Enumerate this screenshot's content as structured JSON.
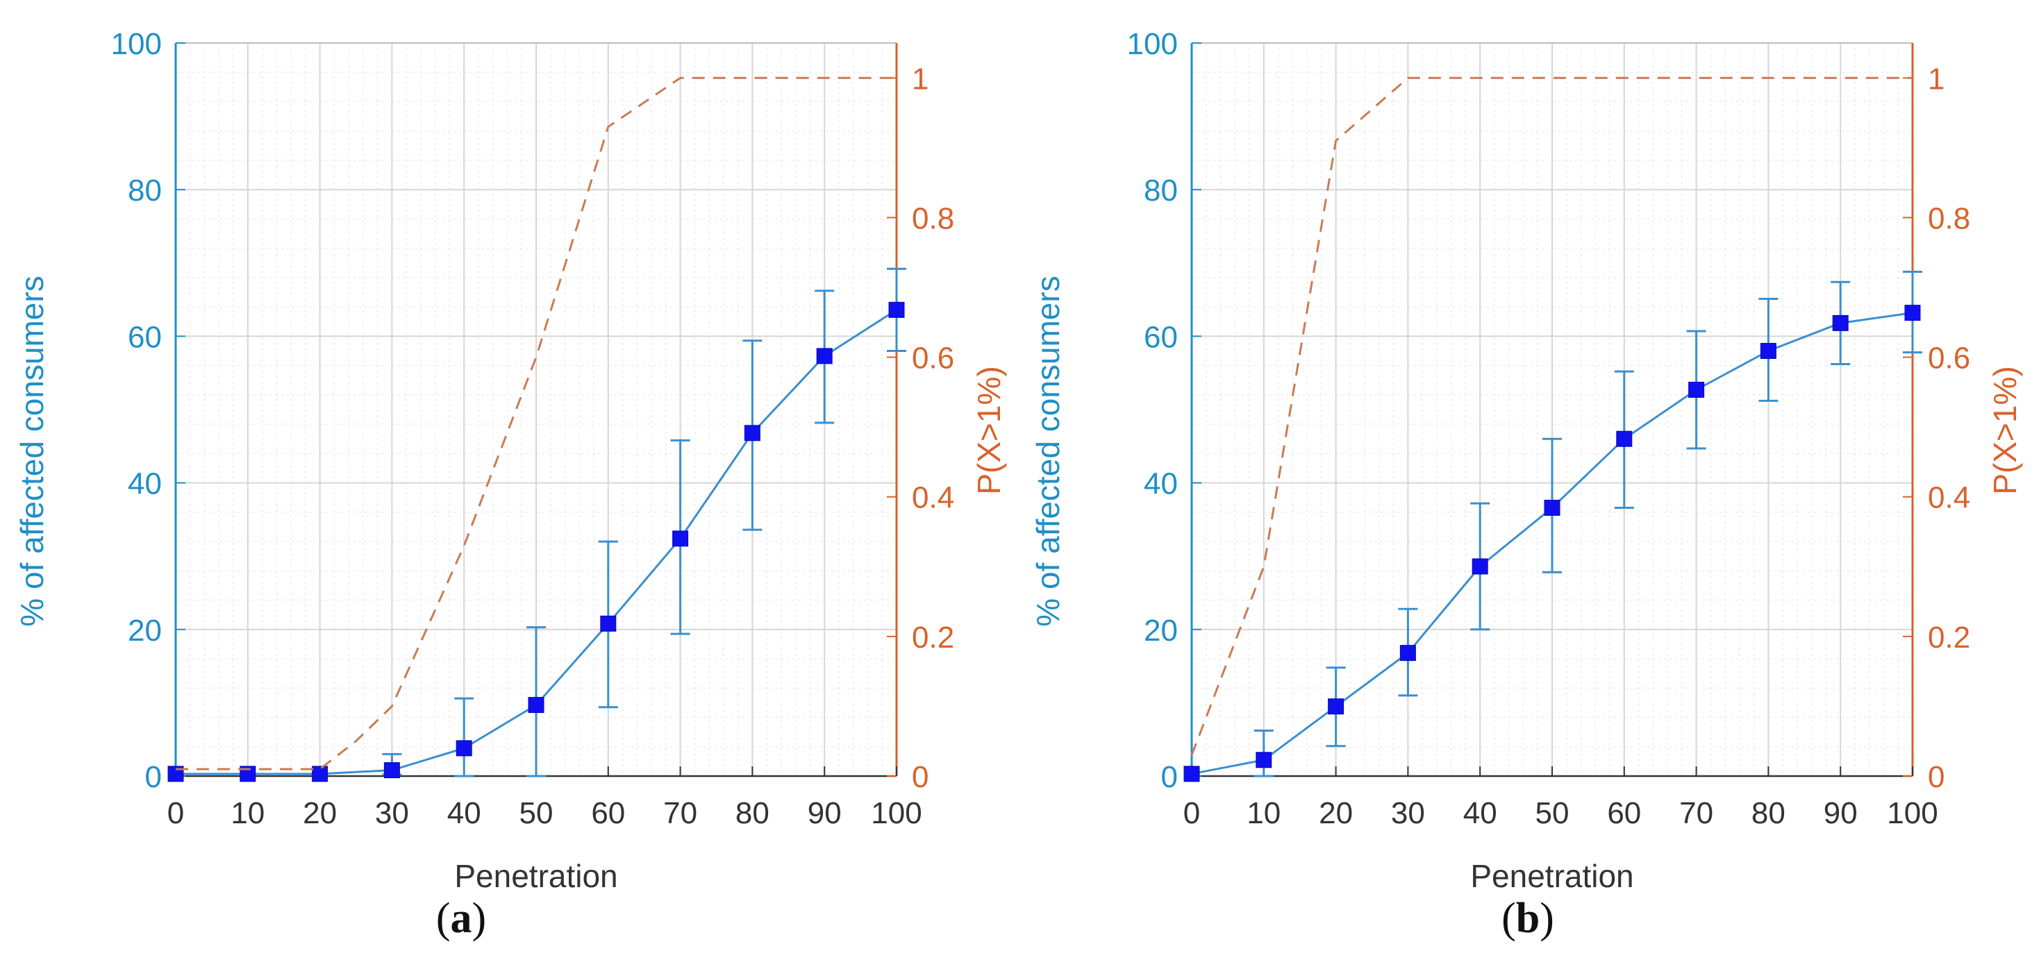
{
  "colors": {
    "left_axis": "#1f8fc6",
    "right_axis": "#d9622a",
    "markers": "#1010ee",
    "line": "#3a8fd0",
    "dashed": "#c97c55",
    "grid": "#d6d6d6",
    "minor_grid": "#ebebeb",
    "bottom_axis": "#333333"
  },
  "chart_data": [
    {
      "id": "a",
      "panel_label": "a",
      "type": "line",
      "xlabel": "Penetration",
      "ylabel": "% of affected consumers",
      "y2label": "P(X>1%)",
      "xlim": [
        0,
        100
      ],
      "ylim": [
        0,
        100
      ],
      "y2lim": [
        0,
        1.05
      ],
      "xticks": [
        0,
        10,
        20,
        30,
        40,
        50,
        60,
        70,
        80,
        90,
        100
      ],
      "yticks": [
        0,
        20,
        40,
        60,
        80,
        100
      ],
      "y2ticks": [
        0,
        0.2,
        0.4,
        0.6,
        0.8,
        1
      ],
      "grid": true,
      "series": [
        {
          "name": "% of affected consumers",
          "axis": "left",
          "style": "solid-square-markers",
          "x": [
            0,
            10,
            20,
            30,
            40,
            50,
            60,
            70,
            80,
            90,
            100
          ],
          "values": [
            0.3,
            0.3,
            0.3,
            0.8,
            3.8,
            9.7,
            20.8,
            32.4,
            46.8,
            57.3,
            63.6
          ],
          "err_low": [
            0.2,
            0.2,
            0.3,
            0.6,
            3.8,
            9.7,
            11.4,
            13.0,
            13.2,
            9.1,
            5.6
          ],
          "err_high": [
            0.2,
            0.2,
            0.3,
            2.2,
            6.8,
            10.6,
            11.2,
            13.4,
            12.6,
            8.9,
            5.6
          ]
        },
        {
          "name": "P(X>1%)",
          "axis": "right",
          "style": "dashed",
          "x": [
            0,
            10,
            20,
            25,
            30,
            40,
            50,
            60,
            70,
            80,
            90,
            100
          ],
          "values": [
            0.01,
            0.01,
            0.01,
            0.05,
            0.1,
            0.33,
            0.6,
            0.93,
            1.0,
            1.0,
            1.0,
            1.0
          ]
        }
      ]
    },
    {
      "id": "b",
      "panel_label": "b",
      "type": "line",
      "xlabel": "Penetration",
      "ylabel": "% of affected consumers",
      "y2label": "P(X>1%)",
      "xlim": [
        0,
        100
      ],
      "ylim": [
        0,
        100
      ],
      "y2lim": [
        0,
        1.05
      ],
      "xticks": [
        0,
        10,
        20,
        30,
        40,
        50,
        60,
        70,
        80,
        90,
        100
      ],
      "yticks": [
        0,
        20,
        40,
        60,
        80,
        100
      ],
      "y2ticks": [
        0,
        0.2,
        0.4,
        0.6,
        0.8,
        1
      ],
      "grid": true,
      "series": [
        {
          "name": "% of affected consumers",
          "axis": "left",
          "style": "solid-square-markers",
          "x": [
            0,
            10,
            20,
            30,
            40,
            50,
            60,
            70,
            80,
            90,
            100
          ],
          "values": [
            0.3,
            2.2,
            9.5,
            16.8,
            28.6,
            36.6,
            46.0,
            52.7,
            58.0,
            61.8,
            63.2
          ],
          "err_low": [
            0.2,
            2.2,
            5.4,
            5.8,
            8.6,
            8.8,
            9.4,
            8.0,
            6.8,
            5.6,
            5.4
          ],
          "err_high": [
            0.2,
            4.0,
            5.3,
            6.0,
            8.6,
            9.4,
            9.2,
            8.0,
            7.1,
            5.6,
            5.6
          ]
        },
        {
          "name": "P(X>1%)",
          "axis": "right",
          "style": "dashed",
          "x": [
            0,
            10,
            20,
            30,
            40,
            50,
            60,
            70,
            80,
            90,
            100
          ],
          "values": [
            0.03,
            0.3,
            0.91,
            1.0,
            1.0,
            1.0,
            1.0,
            1.0,
            1.0,
            1.0,
            1.0
          ]
        }
      ]
    }
  ]
}
